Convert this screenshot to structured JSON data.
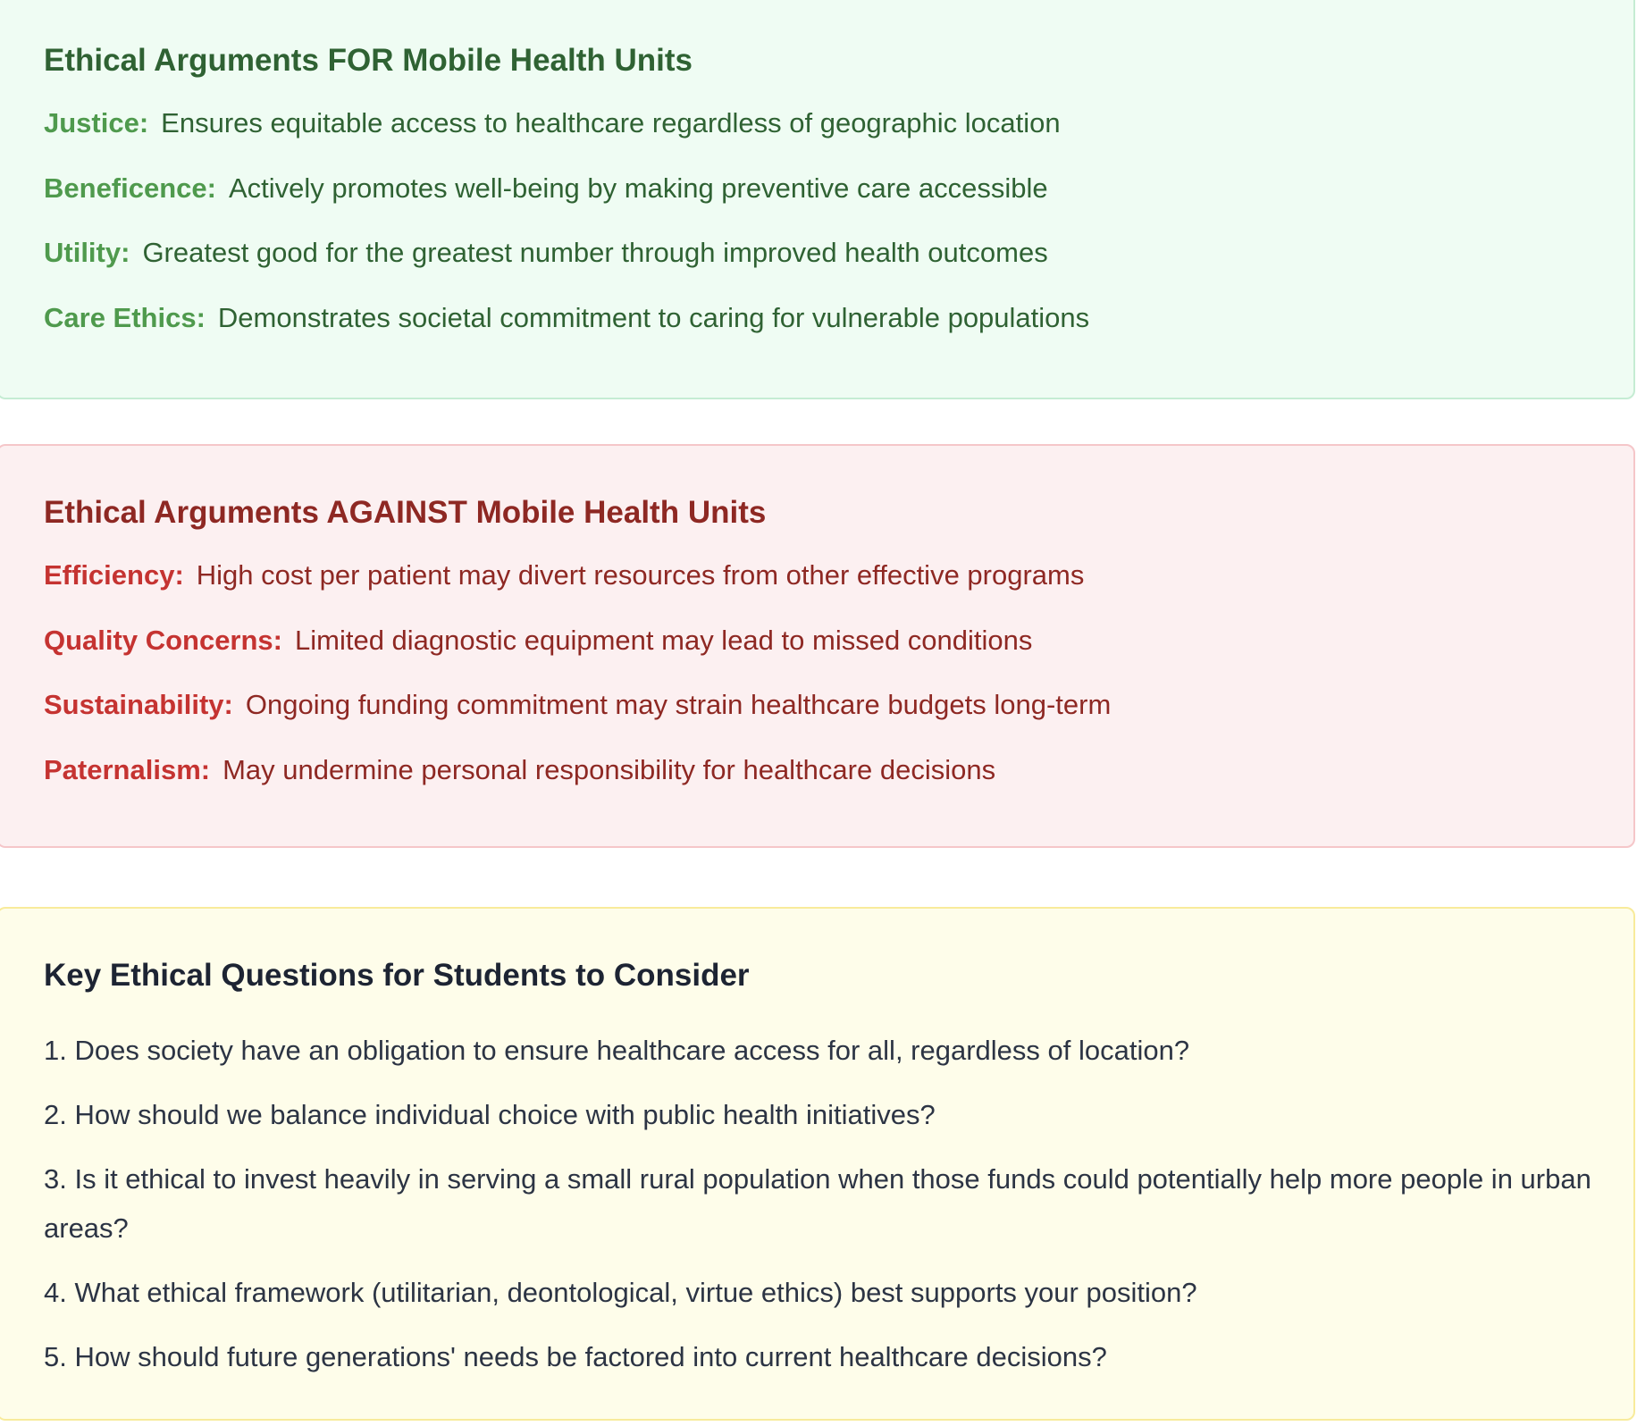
{
  "for_section": {
    "title": "Ethical Arguments FOR Mobile Health Units",
    "items": [
      {
        "term": "Justice:",
        "text": "Ensures equitable access to healthcare regardless of geographic location"
      },
      {
        "term": "Beneficence:",
        "text": "Actively promotes well-being by making preventive care accessible"
      },
      {
        "term": "Utility:",
        "text": "Greatest good for the greatest number through improved health outcomes"
      },
      {
        "term": "Care Ethics:",
        "text": "Demonstrates societal commitment to caring for vulnerable populations"
      }
    ]
  },
  "against_section": {
    "title": "Ethical Arguments AGAINST Mobile Health Units",
    "items": [
      {
        "term": "Efficiency:",
        "text": "High cost per patient may divert resources from other effective programs"
      },
      {
        "term": "Quality Concerns:",
        "text": "Limited diagnostic equipment may lead to missed conditions"
      },
      {
        "term": "Sustainability:",
        "text": "Ongoing funding commitment may strain healthcare budgets long-term"
      },
      {
        "term": "Paternalism:",
        "text": "May undermine personal responsibility for healthcare decisions"
      }
    ]
  },
  "questions_section": {
    "title": "Key Ethical Questions for Students to Consider",
    "items": [
      "1. Does society have an obligation to ensure healthcare access for all, regardless of location?",
      "2. How should we balance individual choice with public health initiatives?",
      "3. Is it ethical to invest heavily in serving a small rural population when those funds could potentially help more people in urban areas?",
      "4. What ethical framework (utilitarian, deontological, virtue ethics) best supports your position?",
      "5. How should future generations' needs be factored into current healthcare decisions?"
    ]
  },
  "colors": {
    "for_background": "#effcf3",
    "for_text": "#2f6233",
    "for_term": "#4f9a4d",
    "against_background": "#fcf0f1",
    "against_text": "#8e2823",
    "against_term": "#c53331",
    "questions_background": "#fefdea",
    "questions_text": "#2c3444"
  }
}
